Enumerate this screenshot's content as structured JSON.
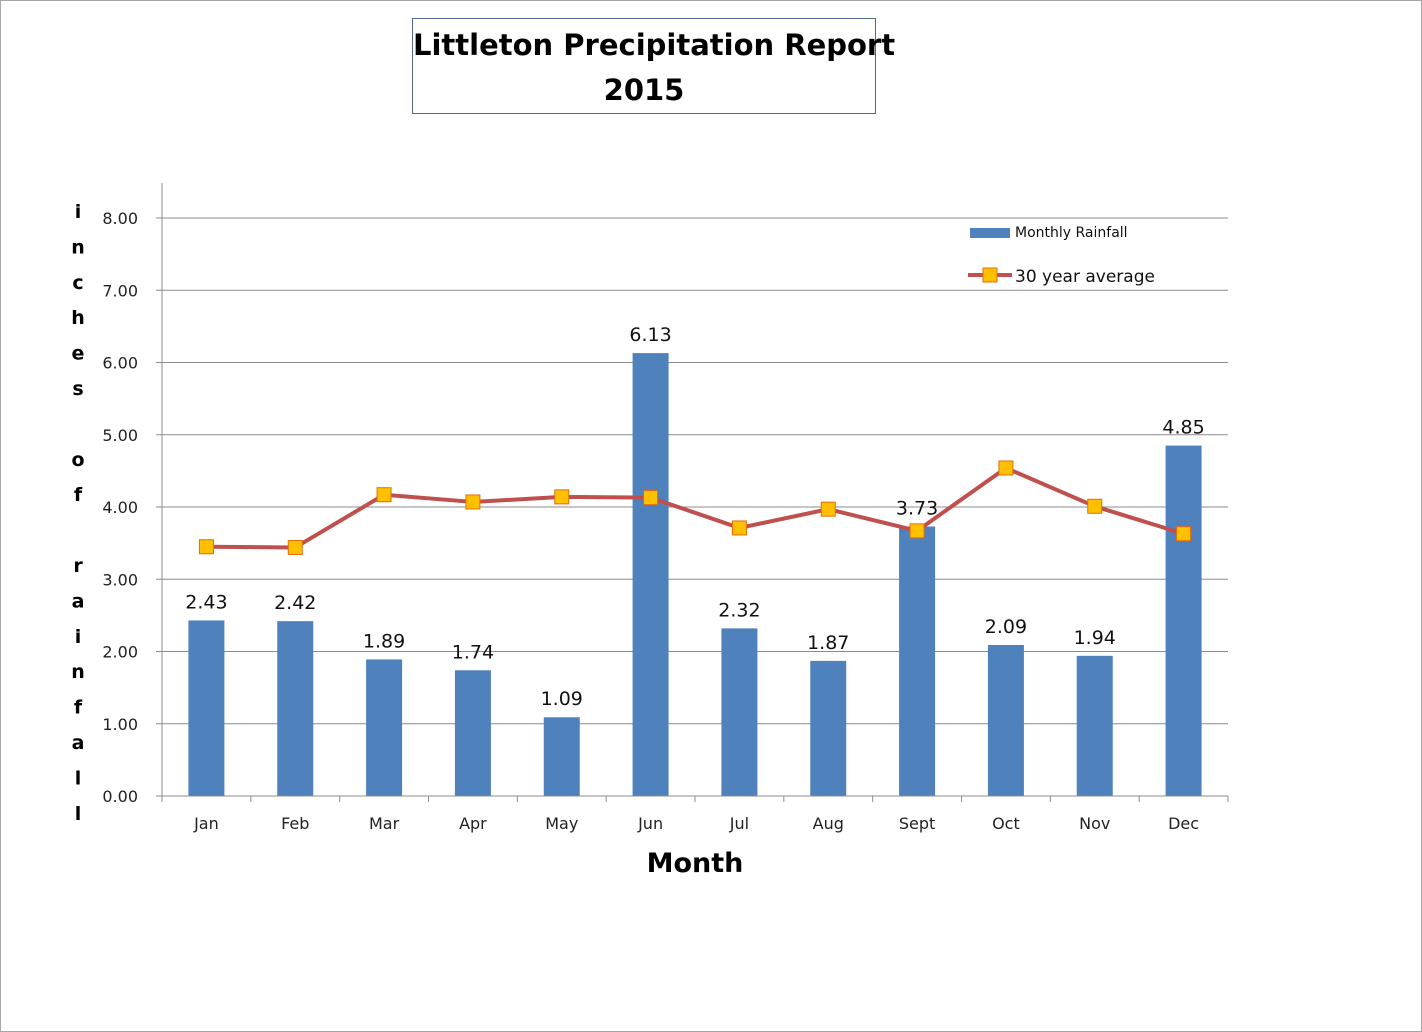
{
  "chart_data": {
    "type": "bar",
    "title": "Littleton Precipitation Report",
    "subtitle": "2015",
    "xlabel": "Month",
    "ylabel": "inches of rainfall",
    "ylim": [
      0,
      8
    ],
    "yticks": [
      "0.00",
      "1.00",
      "2.00",
      "3.00",
      "4.00",
      "5.00",
      "6.00",
      "7.00",
      "8.00"
    ],
    "grid": true,
    "legend_position": "top-right",
    "categories": [
      "Jan",
      "Feb",
      "Mar",
      "Apr",
      "May",
      "Jun",
      "Jul",
      "Aug",
      "Sept",
      "Oct",
      "Nov",
      "Dec"
    ],
    "series": [
      {
        "name": "Monthly Rainfall",
        "type": "bar",
        "color": "#4f81bd",
        "values": [
          2.43,
          2.42,
          1.89,
          1.74,
          1.09,
          6.13,
          2.32,
          1.87,
          3.73,
          2.09,
          1.94,
          4.85
        ],
        "labels": [
          "2.43",
          "2.42",
          "1.89",
          "1.74",
          "1.09",
          "6.13",
          "2.32",
          "1.87",
          "3.73",
          "2.09",
          "1.94",
          "4.85"
        ]
      },
      {
        "name": "30 year average",
        "type": "line",
        "color": "#c0504d",
        "marker_color": "#ffc000",
        "marker_edge": "#e46c0a",
        "values": [
          3.45,
          3.44,
          4.17,
          4.07,
          4.14,
          4.13,
          3.71,
          3.97,
          3.67,
          4.54,
          4.01,
          3.63
        ]
      }
    ]
  }
}
